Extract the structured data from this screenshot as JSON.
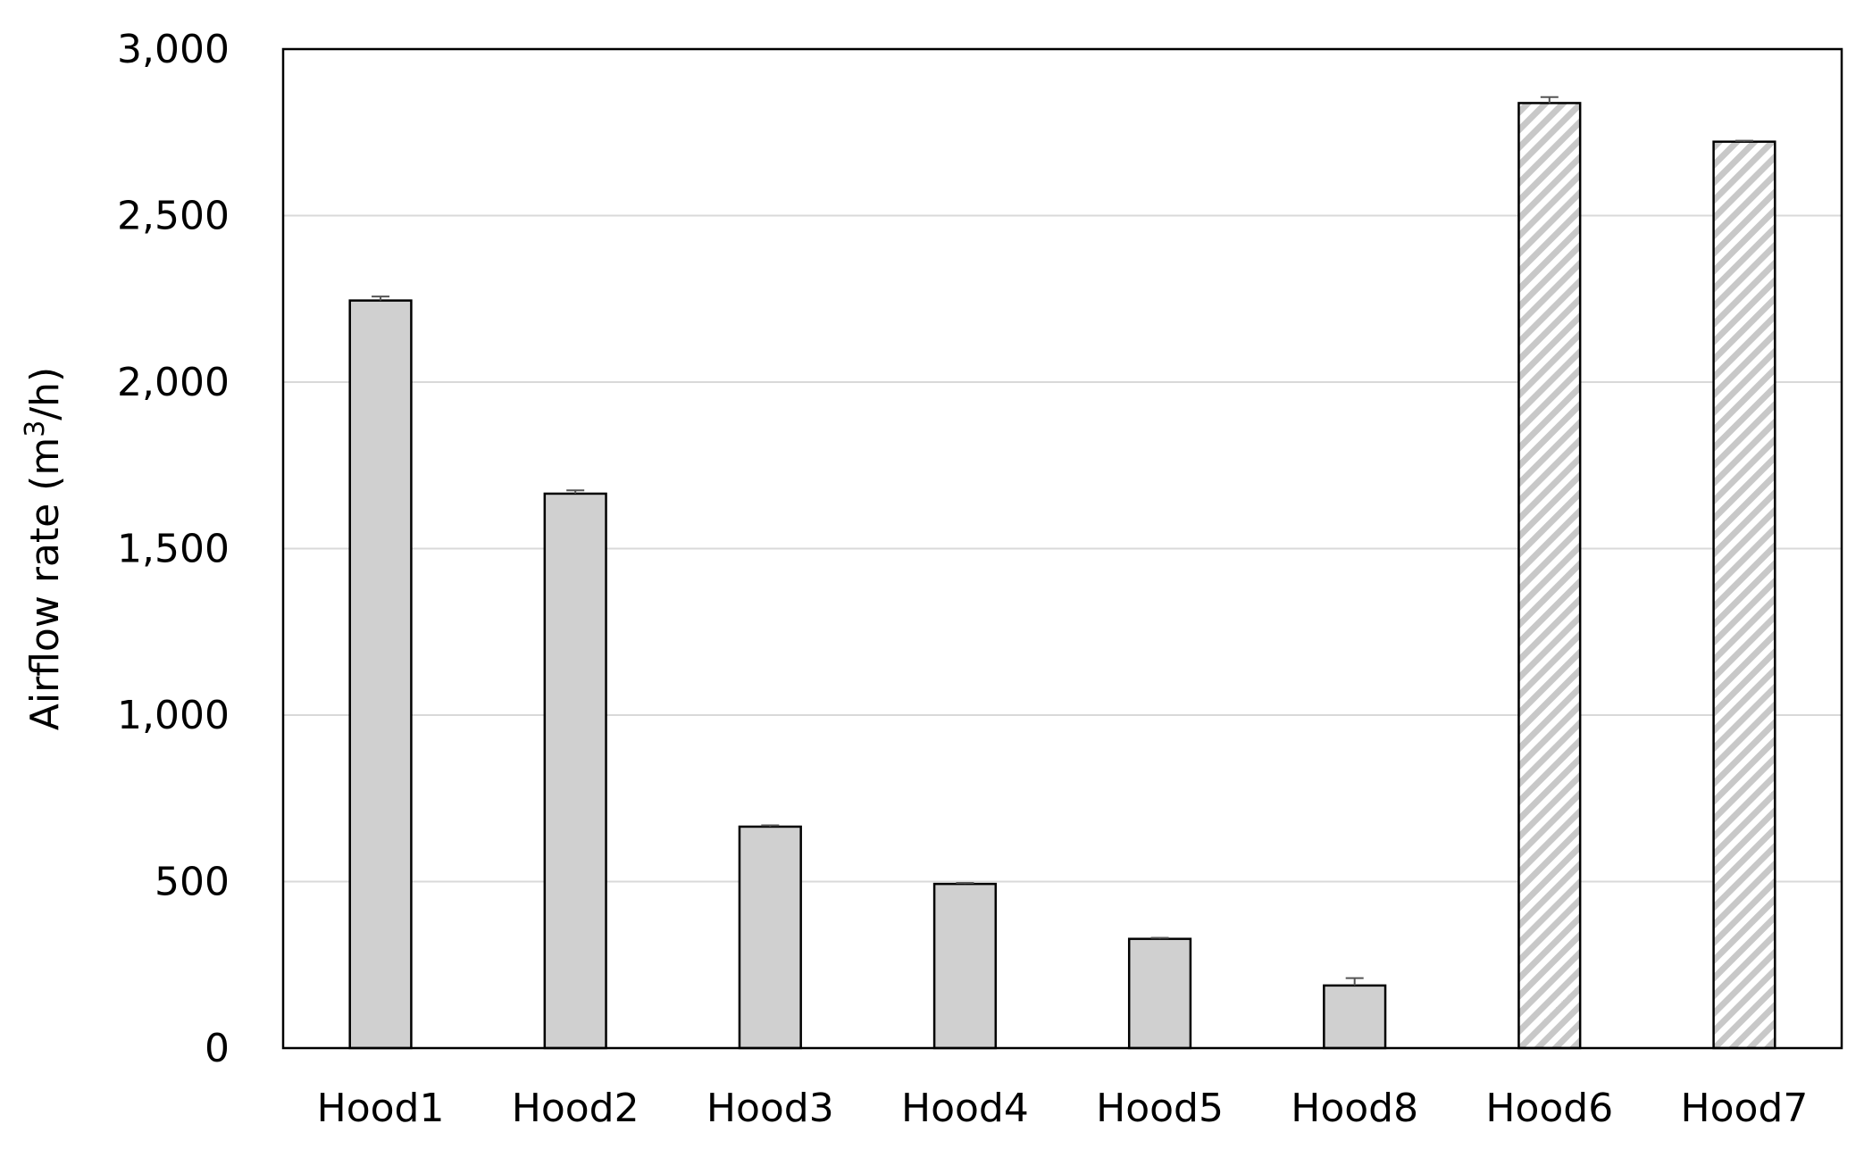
{
  "chart_data": {
    "type": "bar",
    "title": "",
    "xlabel": "",
    "ylabel_main": "Airflow rate (m",
    "ylabel_sup": "3",
    "ylabel_end": "/h)",
    "ylim": [
      0,
      3000
    ],
    "yticks": [
      0,
      500,
      1000,
      1500,
      2000,
      2500,
      3000
    ],
    "ytick_labels": [
      "0",
      "500",
      "1,000",
      "1,500",
      "2,000",
      "2,500",
      "3,000"
    ],
    "grid": true,
    "legend": "none",
    "categories": [
      "Hood1",
      "Hood2",
      "Hood3",
      "Hood4",
      "Hood5",
      "Hood8",
      "Hood6",
      "Hood7"
    ],
    "values": [
      2245,
      1665,
      665,
      493,
      328,
      188,
      2838,
      2722
    ],
    "errors": [
      12,
      10,
      4,
      3,
      3,
      22,
      18,
      3
    ],
    "fill_styles": [
      "solid",
      "solid",
      "solid",
      "solid",
      "solid",
      "solid",
      "hatched",
      "hatched"
    ],
    "colors": {
      "bar_fill": "#d0d0d0",
      "bar_edge": "#000000",
      "hatch_stripe": "#c8c8c8",
      "grid": "#d9d9d9",
      "error_bar": "#555555"
    }
  }
}
